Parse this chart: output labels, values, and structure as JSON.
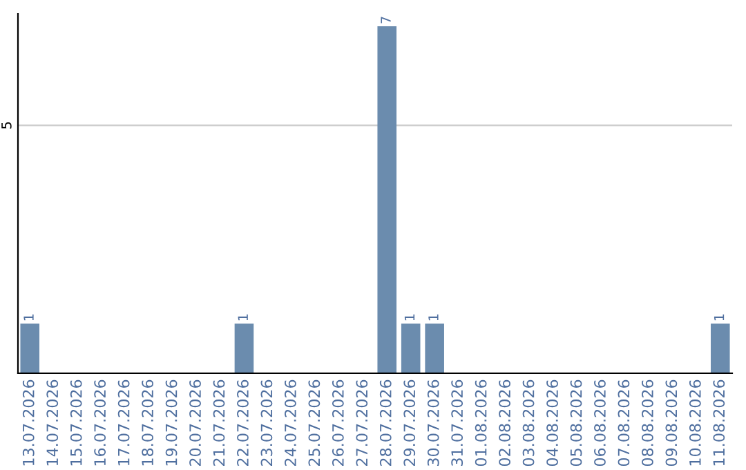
{
  "chart_data": {
    "type": "bar",
    "categories": [
      "13.07.2026",
      "14.07.2026",
      "15.07.2026",
      "16.07.2026",
      "17.07.2026",
      "18.07.2026",
      "19.07.2026",
      "20.07.2026",
      "21.07.2026",
      "22.07.2026",
      "23.07.2026",
      "24.07.2026",
      "25.07.2026",
      "26.07.2026",
      "27.07.2026",
      "28.07.2026",
      "29.07.2026",
      "30.07.2026",
      "31.07.2026",
      "01.08.2026",
      "02.08.2026",
      "03.08.2026",
      "04.08.2026",
      "05.08.2026",
      "06.08.2026",
      "07.08.2026",
      "08.08.2026",
      "09.08.2026",
      "10.08.2026",
      "11.08.2026"
    ],
    "values": [
      1,
      0,
      0,
      0,
      0,
      0,
      0,
      0,
      0,
      1,
      0,
      0,
      0,
      0,
      0,
      7,
      1,
      1,
      0,
      0,
      0,
      0,
      0,
      0,
      0,
      0,
      0,
      0,
      0,
      1
    ],
    "value_labels": [
      "1",
      null,
      null,
      null,
      null,
      null,
      null,
      null,
      null,
      "1",
      null,
      null,
      null,
      null,
      null,
      "7",
      "1",
      "1",
      null,
      null,
      null,
      null,
      null,
      null,
      null,
      null,
      null,
      null,
      null,
      "1"
    ],
    "color": "#6b8cae",
    "ylim": [
      0,
      7.25
    ],
    "yticks": [
      5
    ],
    "grid": "y"
  }
}
